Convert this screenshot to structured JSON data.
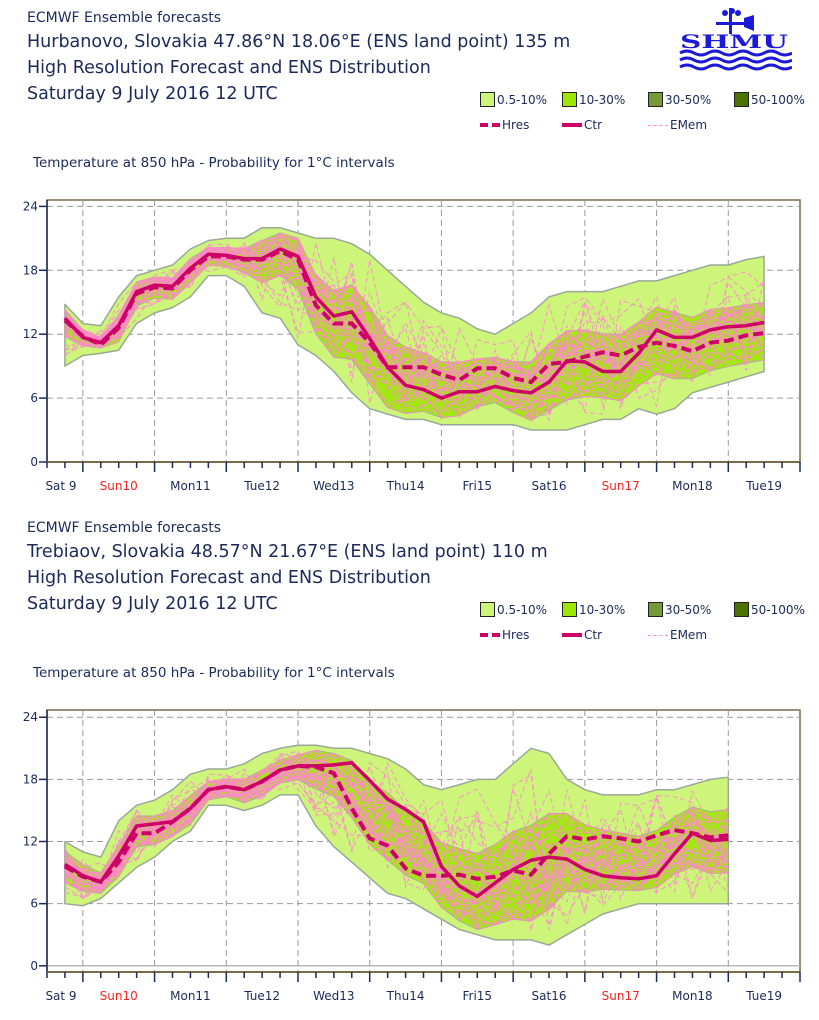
{
  "logo": {
    "text": "SHMU",
    "icon": "shmu-weather-vane-logo",
    "color": "#1a1ad8"
  },
  "legend": {
    "bands": [
      {
        "label": "0.5-10%",
        "color": "#ccf57a"
      },
      {
        "label": "10-30%",
        "color": "#9ee600"
      },
      {
        "label": "30-50%",
        "color": "#769a37"
      },
      {
        "label": "50-100%",
        "color": "#4b7200"
      }
    ],
    "lines": [
      {
        "label": "Hres",
        "color": "#cc0066",
        "style": "dashed-thick"
      },
      {
        "label": "Ctr",
        "color": "#cc0066",
        "style": "solid-thick"
      },
      {
        "label": "EMem",
        "color": "#ff88cc",
        "style": "dashed-thin"
      }
    ]
  },
  "chart_data": [
    {
      "type": "line",
      "header": "ECMWF Ensemble forecasts",
      "location": "Hurbanovo, Slovakia 47.86°N 18.06°E (ENS land point) 135 m",
      "product": "High Resolution Forecast and ENS Distribution",
      "base_time": "Saturday  9 July 2016 12 UTC",
      "title": "Temperature at 850 hPa - Probability for 1°C intervals",
      "xlabel": "",
      "ylabel": "",
      "x_unit": "hours since Sat 9 July 2016 12 UTC",
      "xlim": [
        0,
        252
      ],
      "ylim": [
        0,
        24.6
      ],
      "yticks": [
        0,
        6,
        12,
        18,
        24
      ],
      "grid": true,
      "x_tick_labels": [
        {
          "label": "Sat 9",
          "weekend": false
        },
        {
          "label": "Sun10",
          "weekend": true
        },
        {
          "label": "Mon11",
          "weekend": false
        },
        {
          "label": "Tue12",
          "weekend": false
        },
        {
          "label": "Wed13",
          "weekend": false
        },
        {
          "label": "Thu14",
          "weekend": false
        },
        {
          "label": "Fri15",
          "weekend": false
        },
        {
          "label": "Sat16",
          "weekend": false
        },
        {
          "label": "Sun17",
          "weekend": true
        },
        {
          "label": "Mon18",
          "weekend": false
        },
        {
          "label": "Tue19",
          "weekend": false
        }
      ],
      "x": [
        6,
        12,
        18,
        24,
        30,
        36,
        42,
        48,
        54,
        60,
        66,
        72,
        78,
        84,
        90,
        96,
        102,
        108,
        114,
        120,
        126,
        132,
        138,
        144,
        150,
        156,
        162,
        168,
        174,
        180,
        186,
        192,
        198,
        204,
        210,
        216,
        222,
        228,
        234,
        240
      ],
      "series": [
        {
          "name": "Ctr",
          "values": [
            13.5,
            11.7,
            11.2,
            12.8,
            16.0,
            16.6,
            16.5,
            18.2,
            19.5,
            19.4,
            19.1,
            19.1,
            20.0,
            19.3,
            15.5,
            13.7,
            14.1,
            11.6,
            8.9,
            7.2,
            6.8,
            6.0,
            6.6,
            6.6,
            7.1,
            6.7,
            6.5,
            7.5,
            9.5,
            9.4,
            8.5,
            8.5,
            10.2,
            12.4,
            11.7,
            11.7,
            12.4,
            12.7,
            12.8,
            13.1
          ]
        },
        {
          "name": "Hres",
          "values": [
            13.3,
            11.8,
            11.0,
            12.6,
            15.8,
            16.4,
            16.3,
            18.0,
            19.3,
            19.3,
            19.0,
            19.0,
            19.8,
            19.0,
            14.7,
            13.0,
            13.0,
            11.2,
            8.9,
            8.9,
            8.9,
            8.2,
            7.7,
            8.8,
            8.8,
            7.9,
            7.5,
            9.2,
            9.4,
            9.9,
            10.3,
            10.0,
            10.8,
            11.2,
            10.9,
            10.4,
            11.2,
            11.4,
            11.9,
            12.1
          ]
        },
        {
          "name": "ENS 0.5-10% envelope low",
          "values": [
            9.0,
            10.0,
            10.2,
            10.5,
            13.0,
            14.0,
            14.5,
            15.5,
            17.5,
            17.5,
            16.5,
            14.0,
            13.5,
            11.0,
            10.0,
            8.5,
            6.5,
            5.0,
            4.5,
            4.0,
            4.0,
            3.5,
            3.5,
            3.5,
            3.5,
            3.5,
            3.0,
            3.0,
            3.0,
            3.5,
            4.0,
            4.0,
            5.0,
            4.5,
            5.0,
            6.5,
            7.0,
            7.5,
            8.0,
            8.5
          ]
        },
        {
          "name": "ENS 0.5-10% envelope high",
          "values": [
            14.8,
            13.0,
            12.8,
            15.5,
            17.5,
            18.0,
            18.5,
            20.0,
            20.8,
            21.0,
            21.0,
            22.0,
            22.0,
            21.5,
            21.0,
            21.0,
            20.5,
            19.5,
            18.0,
            16.5,
            15.0,
            14.0,
            13.5,
            12.5,
            12.0,
            13.0,
            14.0,
            15.5,
            16.0,
            16.0,
            16.0,
            16.5,
            17.0,
            17.0,
            17.5,
            18.0,
            18.5,
            18.5,
            19.0,
            19.3
          ]
        }
      ]
    },
    {
      "type": "line",
      "header": "ECMWF Ensemble forecasts",
      "location": "Trebiaov, Slovakia 48.57°N 21.67°E (ENS land point) 110 m",
      "product": "High Resolution Forecast and ENS Distribution",
      "base_time": "Saturday  9 July 2016 12 UTC",
      "title": "Temperature at 850 hPa - Probability for 1°C intervals",
      "xlabel": "",
      "ylabel": "",
      "x_unit": "hours since Sat 9 July 2016 12 UTC",
      "xlim": [
        0,
        252
      ],
      "ylim": [
        -0.6,
        24.7
      ],
      "yticks": [
        0,
        6,
        12,
        18,
        24
      ],
      "grid": true,
      "x_tick_labels": [
        {
          "label": "Sat 9",
          "weekend": false
        },
        {
          "label": "Sun10",
          "weekend": true
        },
        {
          "label": "Mon11",
          "weekend": false
        },
        {
          "label": "Tue12",
          "weekend": false
        },
        {
          "label": "Wed13",
          "weekend": false
        },
        {
          "label": "Thu14",
          "weekend": false
        },
        {
          "label": "Fri15",
          "weekend": false
        },
        {
          "label": "Sat16",
          "weekend": false
        },
        {
          "label": "Sun17",
          "weekend": true
        },
        {
          "label": "Mon18",
          "weekend": false
        },
        {
          "label": "Tue19",
          "weekend": false
        }
      ],
      "x": [
        6,
        12,
        18,
        24,
        30,
        36,
        42,
        48,
        54,
        60,
        66,
        72,
        78,
        84,
        90,
        96,
        102,
        108,
        114,
        120,
        126,
        132,
        138,
        144,
        150,
        156,
        162,
        168,
        174,
        180,
        186,
        192,
        198,
        204,
        210,
        216,
        222,
        228
      ],
      "series": [
        {
          "name": "Ctr",
          "values": [
            9.8,
            8.7,
            8.1,
            10.6,
            13.5,
            13.7,
            13.9,
            15.2,
            17.0,
            17.3,
            17.0,
            17.8,
            18.9,
            19.3,
            19.3,
            19.4,
            19.6,
            17.9,
            16.1,
            15.1,
            13.9,
            9.6,
            7.7,
            6.7,
            8.0,
            9.3,
            10.2,
            10.5,
            10.3,
            9.3,
            8.7,
            8.5,
            8.4,
            8.7,
            10.8,
            12.8,
            12.1,
            12.2
          ]
        },
        {
          "name": "Hres",
          "values": [
            9.6,
            8.6,
            8.1,
            10.0,
            12.8,
            12.8,
            13.9,
            15.2,
            17.0,
            17.3,
            17.0,
            17.8,
            18.9,
            19.3,
            19.2,
            18.6,
            15.2,
            12.3,
            11.6,
            9.4,
            8.7,
            8.7,
            8.8,
            8.4,
            8.6,
            9.2,
            8.8,
            10.8,
            12.5,
            12.2,
            12.5,
            12.3,
            12.0,
            12.6,
            13.1,
            12.8,
            12.4,
            12.6
          ]
        },
        {
          "name": "ENS 0.5-10% envelope low",
          "values": [
            6.0,
            5.8,
            6.5,
            8.0,
            9.5,
            10.5,
            12.0,
            13.0,
            15.5,
            15.5,
            15.0,
            15.5,
            16.5,
            16.5,
            13.5,
            11.5,
            10.0,
            8.5,
            7.0,
            6.5,
            5.5,
            4.5,
            3.5,
            3.0,
            2.5,
            2.5,
            2.5,
            2.0,
            3.0,
            4.0,
            5.0,
            5.5,
            6.0,
            6.0,
            6.0,
            6.0,
            6.0,
            6.0
          ]
        },
        {
          "name": "ENS 0.5-10% envelope high",
          "values": [
            12.0,
            11.0,
            10.5,
            14.0,
            15.5,
            16.0,
            17.0,
            18.5,
            19.0,
            19.0,
            19.5,
            20.5,
            21.0,
            21.3,
            21.3,
            21.0,
            21.0,
            20.5,
            20.0,
            19.0,
            17.5,
            17.0,
            17.5,
            18.0,
            18.0,
            19.5,
            21.0,
            20.5,
            18.0,
            17.0,
            16.5,
            16.5,
            16.5,
            17.0,
            17.0,
            17.5,
            18.0,
            18.2
          ]
        }
      ]
    }
  ]
}
